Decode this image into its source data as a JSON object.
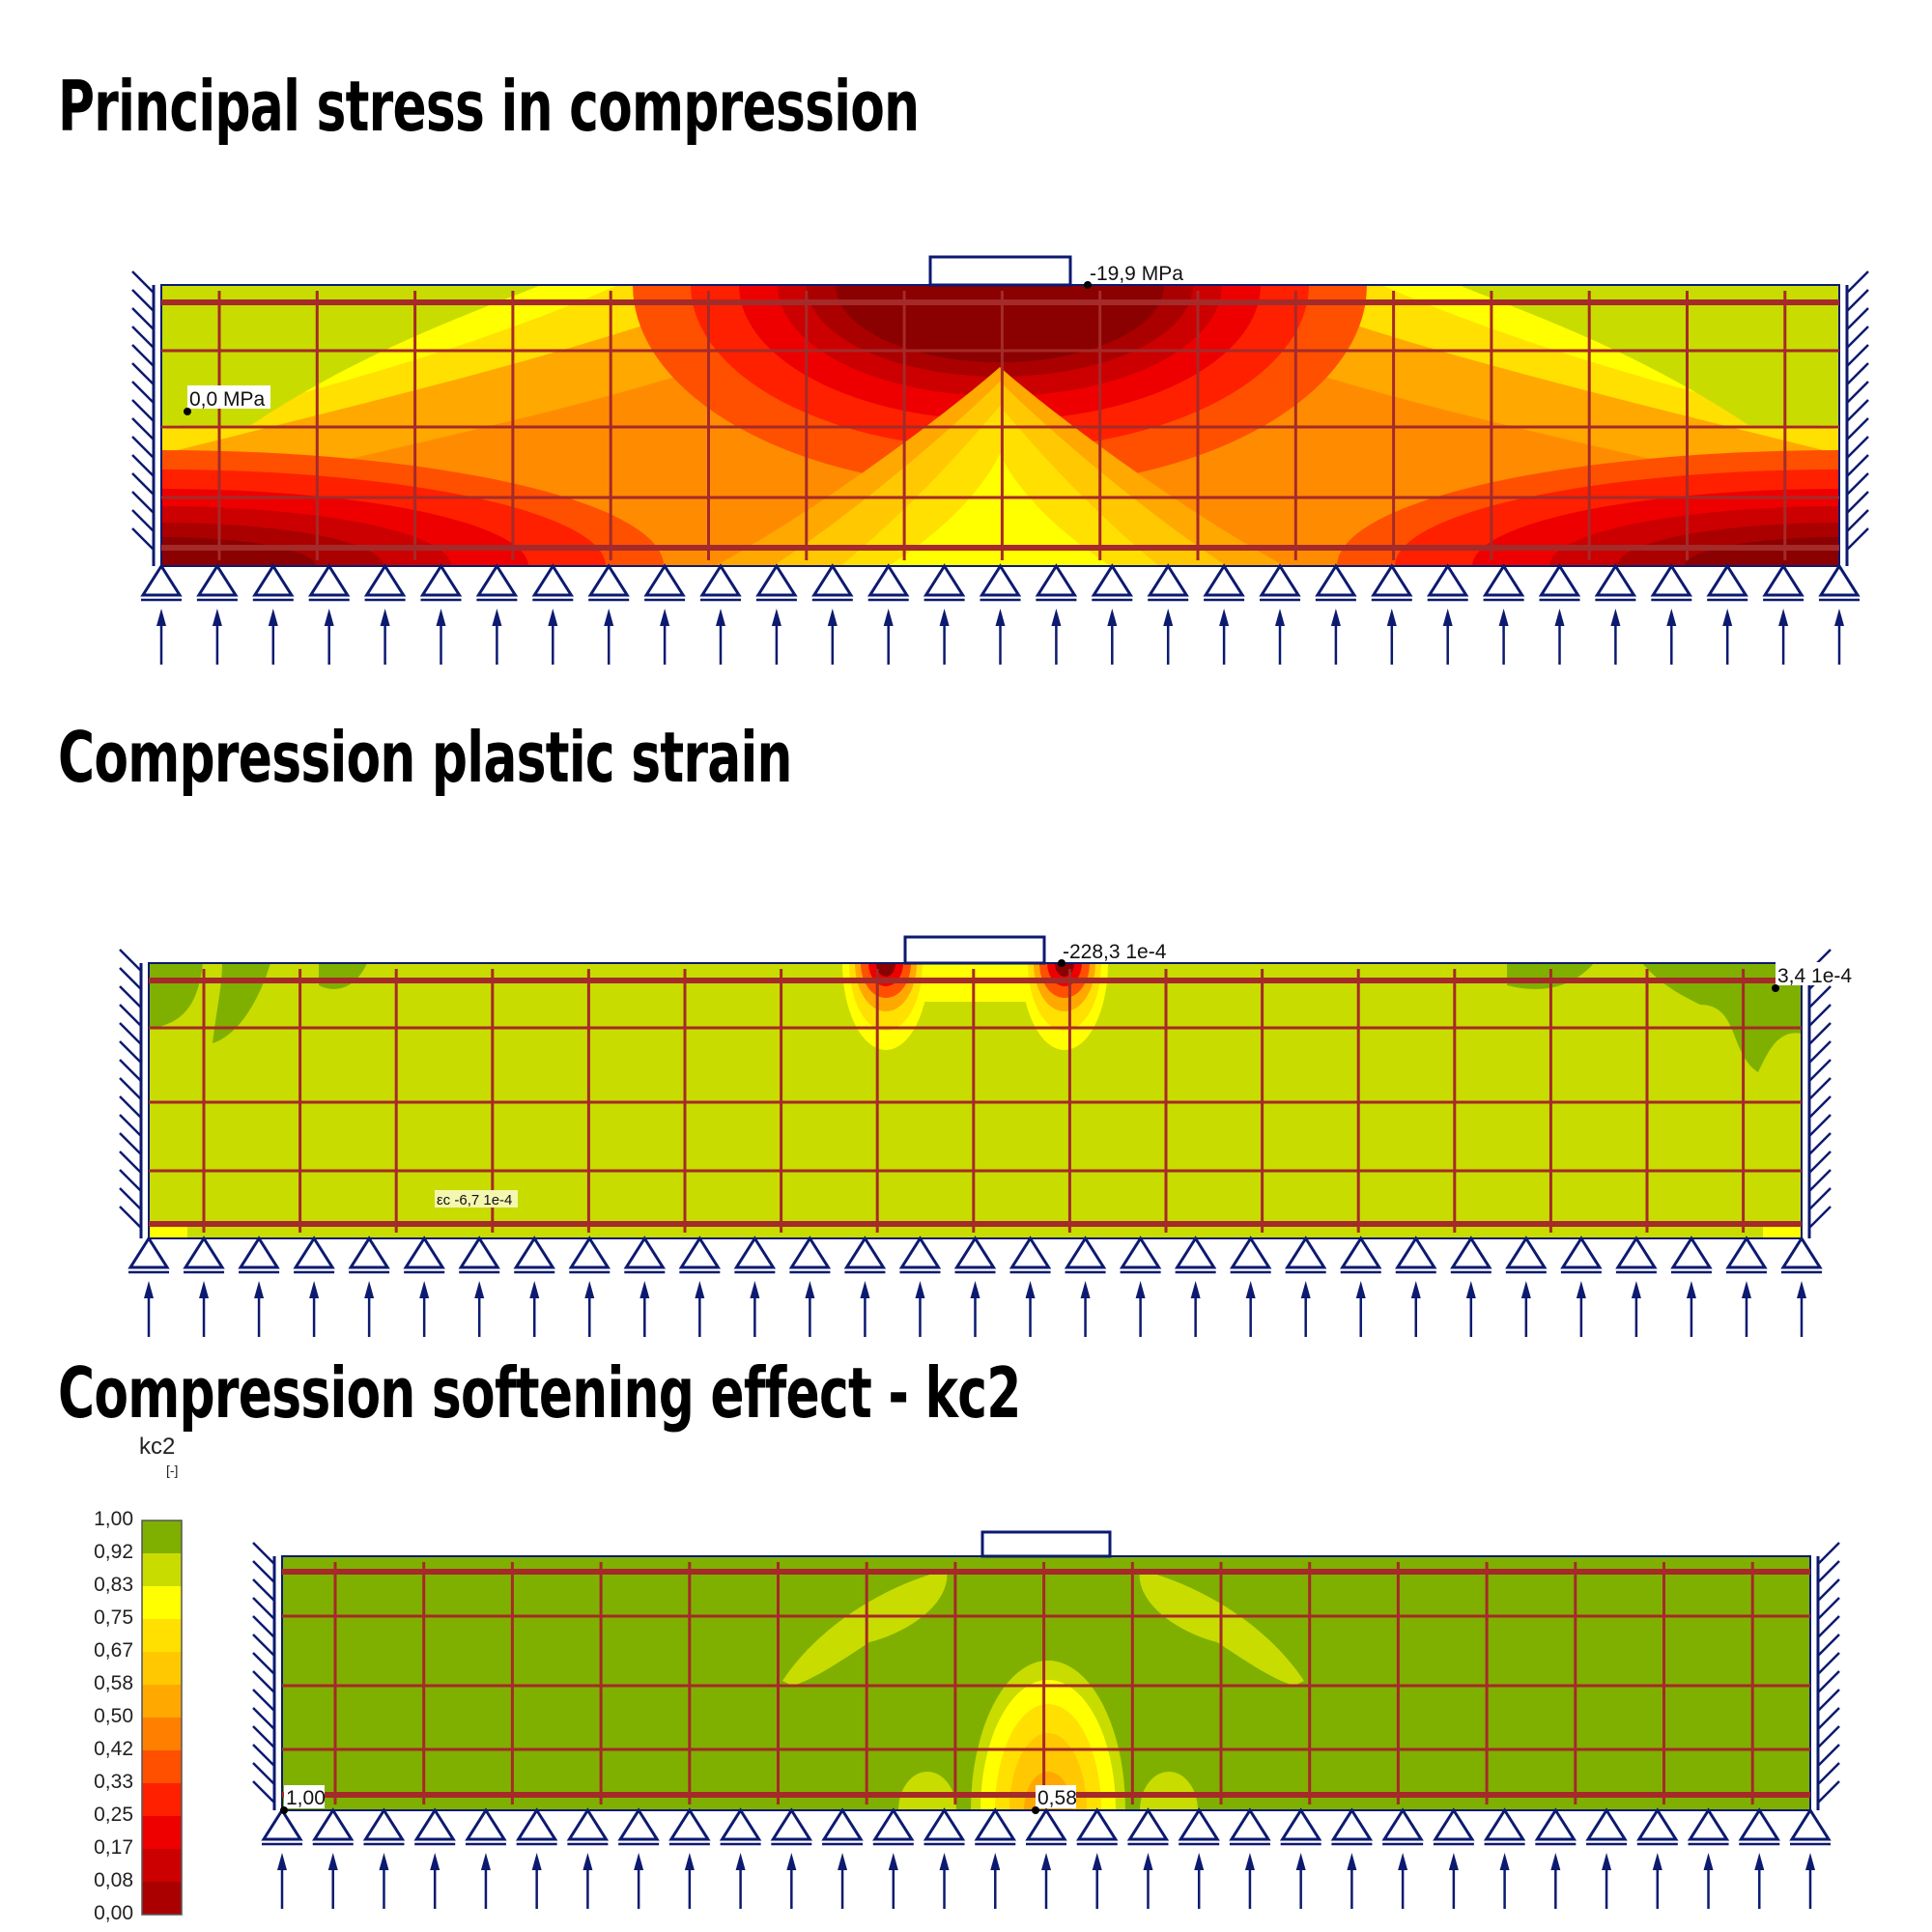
{
  "panels": [
    {
      "title": "Principal stress in compression",
      "max_label": "-19,9 MPa",
      "min_label": "0,0 MPa"
    },
    {
      "title": "Compression plastic strain",
      "max_label": "-228,3 1e-4",
      "min_label": "3,4 1e-4",
      "value_label": "εc -6,7 1e-4"
    },
    {
      "title": "Compression softening effect - kc2",
      "max_label": "1,00",
      "min_label": "0,58"
    }
  ],
  "legend": {
    "title": "kc2",
    "unit": "[-]",
    "values": [
      "1,00",
      "0,92",
      "0,83",
      "0,75",
      "0,67",
      "0,58",
      "0,50",
      "0,42",
      "0,33",
      "0,25",
      "0,17",
      "0,08",
      "0,00"
    ],
    "colors": [
      "#7fb000",
      "#c8dc00",
      "#ffff00",
      "#ffe000",
      "#ffc800",
      "#ffa800",
      "#ff8000",
      "#ff5000",
      "#ff2000",
      "#ee0000",
      "#cc0000",
      "#aa0000"
    ]
  },
  "colors": {
    "support": "#0c1a70",
    "rebar": "#a52a2a"
  }
}
